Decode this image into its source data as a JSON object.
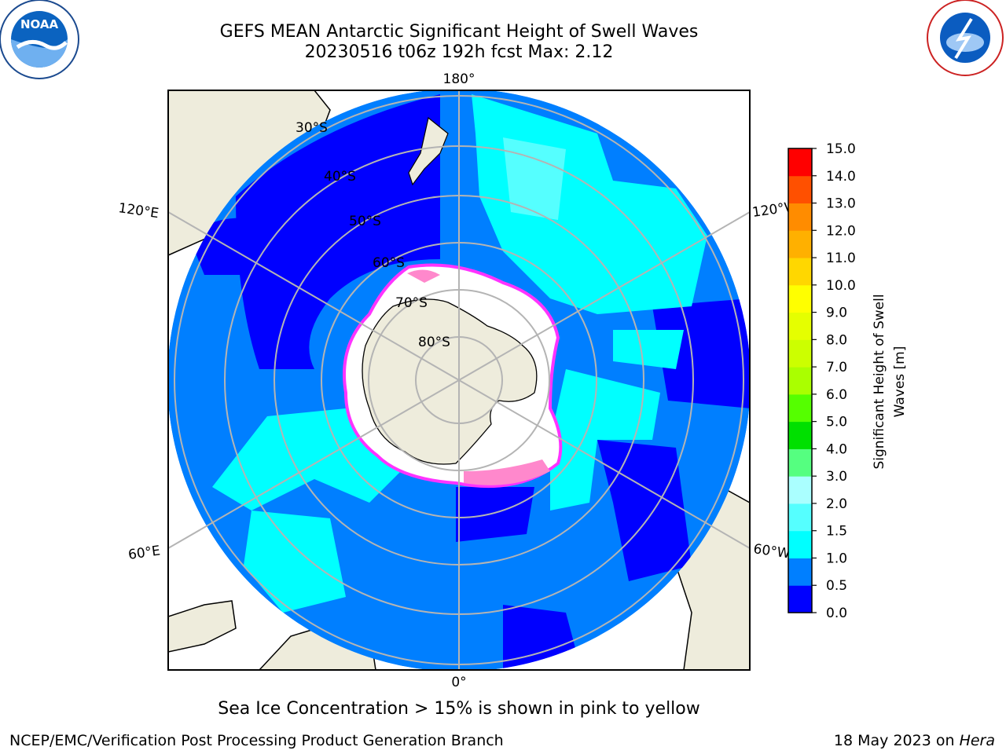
{
  "title": {
    "line1": "GEFS MEAN Antarctic Significant Height of Swell Waves",
    "line2": "20230516 t06z 192h fcst   Max: 2.12"
  },
  "map": {
    "projection": "south-polar-stereographic",
    "longitude_labels": [
      "180°",
      "120°E",
      "120°W",
      "60°E",
      "60°W",
      "0°"
    ],
    "latitude_labels": [
      "30°S",
      "40°S",
      "50°S",
      "60°S",
      "70°S",
      "80°S"
    ],
    "colors": {
      "land": "#eeecdc",
      "ocean_lowest": "#0000ff",
      "ocean_low": "#007fff",
      "ocean_mid": "#00ffff",
      "ocean_high": "#55ffff",
      "sea_ice": "#ffffff",
      "ice_edge": "#ff33ff",
      "gridline": "#b4b4b4"
    }
  },
  "colorbar": {
    "label": "Significant Height of Swell Waves [m]",
    "label_line1": "Significant Height of Swell",
    "label_line2": "Waves [m]",
    "levels": [
      "0.0",
      "0.5",
      "1.0",
      "1.5",
      "2.0",
      "3.0",
      "4.0",
      "5.0",
      "6.0",
      "7.0",
      "8.0",
      "9.0",
      "10.0",
      "11.0",
      "12.0",
      "13.0",
      "14.0",
      "15.0"
    ],
    "colors": [
      "#0000ff",
      "#007fff",
      "#00ffff",
      "#55ffff",
      "#aaffff",
      "#55ff80",
      "#00e000",
      "#55ff00",
      "#aaff00",
      "#ccff00",
      "#e5ff00",
      "#ffff00",
      "#ffd700",
      "#ffb000",
      "#ff8c00",
      "#ff5000",
      "#ff0000"
    ]
  },
  "logos": {
    "left": "NOAA",
    "right": "NATIONAL WEATHER SERVICE"
  },
  "footer": {
    "note": "Sea Ice Concentration > 15% is shown in pink to yellow",
    "credit": "NCEP/EMC/Verification Post Processing Product Generation Branch",
    "date": "18 May 2023 on",
    "host": "Hera"
  }
}
